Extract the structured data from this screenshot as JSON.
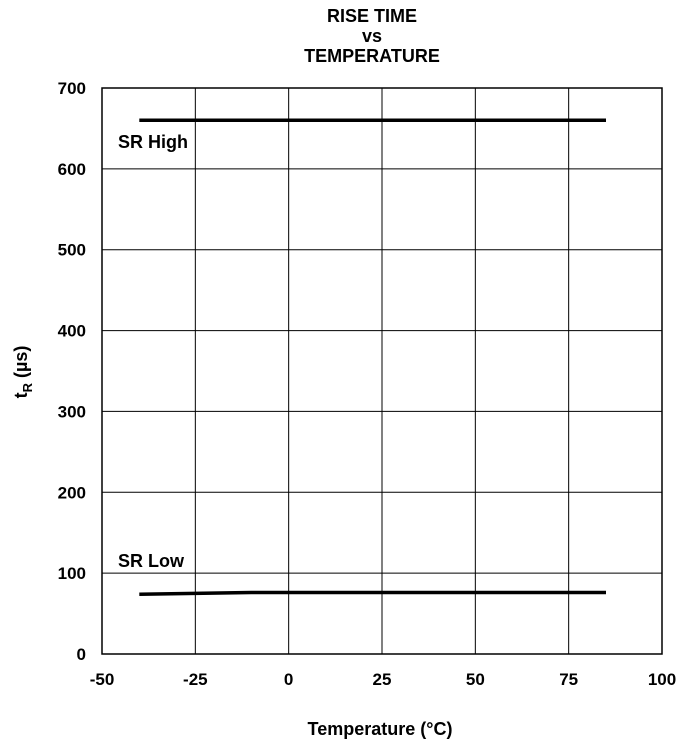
{
  "chart_data": {
    "type": "line",
    "title_lines": [
      "RISE TIME",
      "vs",
      "TEMPERATURE"
    ],
    "xlabel": "Temperature (°C)",
    "ylabel_main": "t",
    "ylabel_sub": "R",
    "ylabel_unit": " (µs)",
    "xlim": [
      -50,
      100
    ],
    "ylim": [
      0,
      700
    ],
    "x_ticks": [
      -50,
      -25,
      0,
      25,
      50,
      75,
      100
    ],
    "x_tick_labels": [
      "-50",
      "-25",
      "0",
      "25",
      "50",
      "75",
      "100"
    ],
    "y_ticks": [
      0,
      100,
      200,
      300,
      400,
      500,
      600,
      700
    ],
    "y_tick_labels": [
      "0",
      "100",
      "200",
      "300",
      "400",
      "500",
      "600",
      "700"
    ],
    "grid": true,
    "series": [
      {
        "name": "SR High",
        "x": [
          -40,
          -25,
          0,
          25,
          50,
          85
        ],
        "values": [
          660,
          660,
          660,
          660,
          660,
          660
        ]
      },
      {
        "name": "SR Low",
        "x": [
          -40,
          -25,
          -10,
          0,
          25,
          50,
          85
        ],
        "values": [
          74,
          75,
          76,
          76,
          76,
          76,
          76
        ]
      }
    ]
  }
}
